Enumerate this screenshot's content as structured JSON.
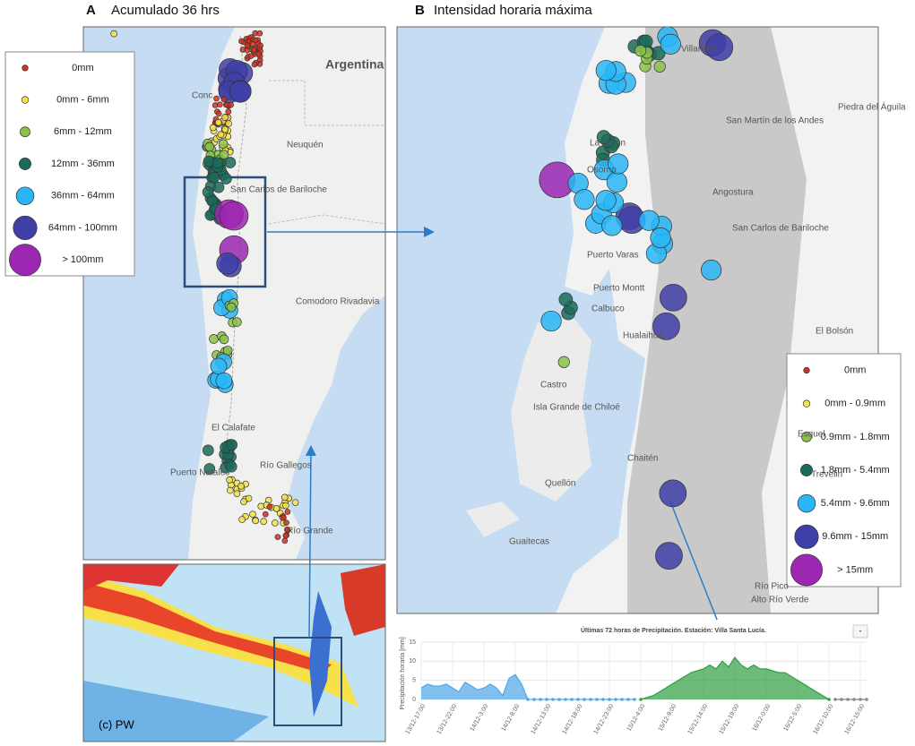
{
  "panel_a": {
    "letter": "A",
    "title": "Acumulado 36 hrs",
    "places": [
      "Argentina",
      "Conc",
      "Neuquén",
      "San Carlos de Bariloche",
      "Comodoro Rivadavia",
      "El Calafate",
      "Puerto Natales",
      "Río Gallegos",
      "Río Grande"
    ],
    "legend": [
      {
        "label": "0mm",
        "color": "#d7301f"
      },
      {
        "label": "0mm - 6mm",
        "color": "#f2e34a"
      },
      {
        "label": "6mm - 12mm",
        "color": "#8bc34a"
      },
      {
        "label": "12mm - 36mm",
        "color": "#1b6b5a"
      },
      {
        "label": "36mm - 64mm",
        "color": "#29b6f6"
      },
      {
        "label": "64mm - 100mm",
        "color": "#3f3fa8"
      },
      {
        "label": "> 100mm",
        "color": "#9c27b0"
      }
    ]
  },
  "panel_b": {
    "letter": "B",
    "title": "Intensidad horaria máxima",
    "places": [
      "Villarrica",
      "San Martín de los Andes",
      "Piedra del Águila",
      "La Unión",
      "Osorno",
      "Angostura",
      "San Carlos de Bariloche",
      "Puerto Varas",
      "Puerto Montt",
      "Calbuco",
      "Hualaihué",
      "El Bolsón",
      "Castro",
      "Isla Grande de Chiloé",
      "Chaitén",
      "Esquel",
      "Quellón",
      "Trevelin",
      "Guaitecas",
      "Río Pico",
      "Alto Río Verde"
    ],
    "legend": [
      {
        "label": "0mm",
        "color": "#d7301f"
      },
      {
        "label": "0mm - 0.9mm",
        "color": "#f2e34a"
      },
      {
        "label": "0.9mm - 1.8mm",
        "color": "#8bc34a"
      },
      {
        "label": "1.8mm - 5.4mm",
        "color": "#1b6b5a"
      },
      {
        "label": "5.4mm - 9.6mm",
        "color": "#29b6f6"
      },
      {
        "label": "9.6mm - 15mm",
        "color": "#3f3fa8"
      },
      {
        "label": "> 15mm",
        "color": "#9c27b0"
      }
    ]
  },
  "panel_c": {
    "label": "(c) PW"
  },
  "chart_data": {
    "type": "area",
    "title": "Últimas 72 horas de Precipitación. Estación: Villa Santa Lucía.",
    "ylabel": "Precipitación horaria [mm]",
    "button": "-",
    "categories": [
      "13/12-17:00",
      null,
      null,
      null,
      null,
      "13/12-22:00",
      null,
      null,
      null,
      null,
      "14/12-3:00",
      null,
      null,
      null,
      null,
      "14/12-8:00",
      null,
      null,
      null,
      null,
      "14/12-13:00",
      null,
      null,
      null,
      null,
      "14/12-18:00",
      null,
      null,
      null,
      null,
      "14/12-23:00",
      null,
      null,
      null,
      null,
      "15/12-4:00",
      null,
      null,
      null,
      null,
      "15/12-9:00",
      null,
      null,
      null,
      null,
      "15/12-14:00",
      null,
      null,
      null,
      null,
      "15/12-19:00",
      null,
      null,
      null,
      null,
      "16/12-0:00",
      null,
      null,
      null,
      null,
      "16/12-5:00",
      null,
      null,
      null,
      null,
      "16/12-10:00",
      null,
      null,
      null,
      null,
      "16/12-15:00",
      null
    ],
    "series": [
      {
        "color": "#4da6e8",
        "values": [
          3,
          4,
          3.5,
          3.5,
          4,
          3,
          2,
          4.5,
          3.5,
          2.5,
          3,
          4,
          3,
          1,
          5.5,
          6.5,
          4,
          0,
          0,
          0,
          0,
          0,
          0,
          0,
          0,
          0,
          0,
          0,
          0,
          0,
          0,
          0,
          0,
          0,
          0,
          null,
          null,
          null,
          null,
          null,
          null,
          null,
          null,
          null,
          null,
          null,
          null,
          null,
          null,
          null,
          null,
          null,
          null,
          null,
          null,
          null,
          null,
          null,
          null,
          null,
          null,
          null,
          null,
          null,
          null,
          null,
          null,
          null,
          null,
          null,
          null,
          null
        ]
      },
      {
        "color": "#2e9e3e",
        "values": [
          null,
          null,
          null,
          null,
          null,
          null,
          null,
          null,
          null,
          null,
          null,
          null,
          null,
          null,
          null,
          null,
          null,
          null,
          null,
          null,
          null,
          null,
          null,
          null,
          null,
          null,
          null,
          null,
          null,
          null,
          null,
          null,
          null,
          null,
          null,
          0,
          0.5,
          1,
          2,
          3,
          4,
          5,
          6,
          7,
          7.5,
          8,
          9,
          8,
          10,
          8.5,
          11,
          9,
          8,
          9,
          8,
          8,
          7.5,
          7,
          7,
          6,
          5,
          4,
          3,
          2,
          1,
          0,
          null,
          null,
          null,
          null,
          null,
          null
        ]
      },
      {
        "color": "#888888",
        "values": [
          null,
          null,
          null,
          null,
          null,
          null,
          null,
          null,
          null,
          null,
          null,
          null,
          null,
          null,
          null,
          null,
          null,
          null,
          null,
          null,
          null,
          null,
          null,
          null,
          null,
          null,
          null,
          null,
          null,
          null,
          null,
          null,
          null,
          null,
          null,
          null,
          null,
          null,
          null,
          null,
          null,
          null,
          null,
          null,
          null,
          null,
          null,
          null,
          null,
          null,
          null,
          null,
          null,
          null,
          null,
          null,
          null,
          null,
          null,
          null,
          null,
          null,
          null,
          null,
          null,
          null,
          0,
          0,
          0,
          0,
          0,
          0
        ]
      }
    ],
    "ylim": [
      0,
      15
    ],
    "yticks": [
      0,
      5,
      10,
      15
    ],
    "grid": true
  }
}
